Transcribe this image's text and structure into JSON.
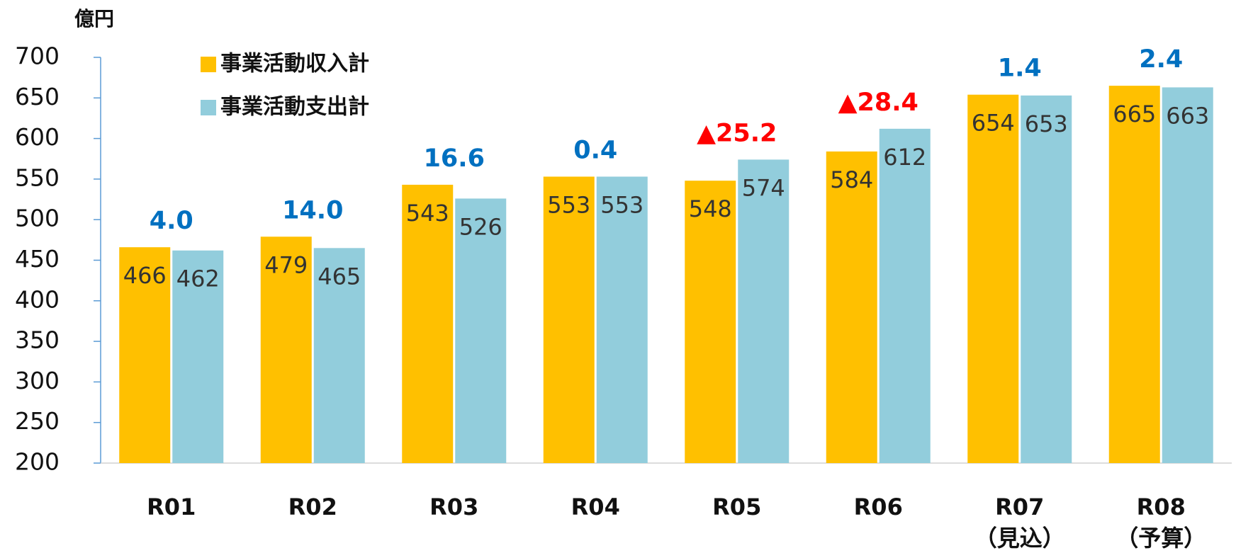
{
  "chart_data": {
    "type": "bar",
    "y_axis_label": "億円",
    "categories": [
      "R01",
      "R02",
      "R03",
      "R04",
      "R05",
      "R06",
      "R07\n（見込）",
      "R08\n（予算）"
    ],
    "series": [
      {
        "name": "事業活動収入計",
        "color": "#ffc000",
        "values": [
          466,
          479,
          543,
          553,
          548,
          584,
          654,
          665
        ]
      },
      {
        "name": "事業活動支出計",
        "color": "#92cddc",
        "values": [
          462,
          465,
          526,
          553,
          574,
          612,
          653,
          663
        ]
      }
    ],
    "difference": {
      "values": [
        4.0,
        14.0,
        16.6,
        0.4,
        -25.2,
        -28.4,
        1.4,
        2.4
      ],
      "value_labels": [
        "4.0",
        "14.0",
        "16.6",
        "0.4",
        "▲25.2",
        "▲28.4",
        "1.4",
        "2.4"
      ],
      "positive_color": "#0070c0",
      "negative_color": "#ff0000"
    },
    "ylim": [
      200,
      700
    ],
    "yticks": [
      200,
      250,
      300,
      350,
      400,
      450,
      500,
      550,
      600,
      650,
      700
    ],
    "legend": "top-left"
  }
}
